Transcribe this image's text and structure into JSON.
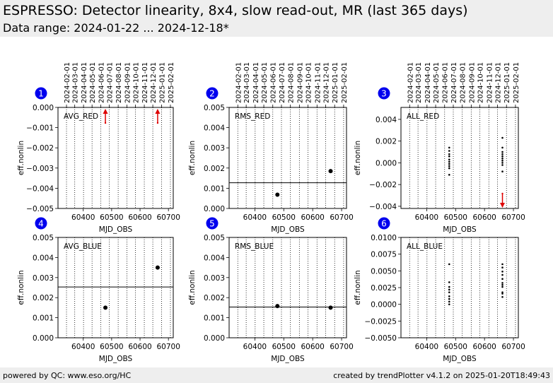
{
  "header": {
    "title": "ESPRESSO: Detector linearity, 8x4, slow read-out, MR (last 365 days)",
    "subtitle": "Data range: 2024-01-22 ... 2024-12-18*"
  },
  "footer": {
    "left": "powered by QC: www.eso.org/HC",
    "right": "created by trendPlotter v4.1.2 on 2025-01-20T18:49:43"
  },
  "colors": {
    "header_bg": "#eeeeee",
    "badge": "#0000ee",
    "marker": "#000000",
    "outlier": "#dd0000"
  },
  "top_date_ticks": [
    {
      "label": "2024-02-01",
      "mjd": 60341
    },
    {
      "label": "2024-03-01",
      "mjd": 60370
    },
    {
      "label": "2024-04-01",
      "mjd": 60401
    },
    {
      "label": "2024-05-01",
      "mjd": 60431
    },
    {
      "label": "2024-06-01",
      "mjd": 60462
    },
    {
      "label": "2024-07-01",
      "mjd": 60492
    },
    {
      "label": "2024-08-01",
      "mjd": 60523
    },
    {
      "label": "2024-09-01",
      "mjd": 60554
    },
    {
      "label": "2024-10-01",
      "mjd": 60584
    },
    {
      "label": "2024-11-01",
      "mjd": 60615
    },
    {
      "label": "2024-12-01",
      "mjd": 60645
    },
    {
      "label": "2025-01-01",
      "mjd": 60676
    },
    {
      "label": "2025-02-01",
      "mjd": 60707
    }
  ],
  "chart_data": [
    {
      "badge": "1",
      "type": "scatter",
      "label": "AVG_RED",
      "xlabel": "MJD_OBS",
      "ylabel": "eff.nonlin",
      "xlim": [
        60311,
        60717
      ],
      "ylim": [
        -0.005,
        0.0
      ],
      "xticks": [
        60400,
        60500,
        60600,
        60700
      ],
      "yticks": [
        -0.005,
        -0.004,
        -0.003,
        -0.002,
        -0.001,
        0.0
      ],
      "ytick_labels": [
        "−0.005",
        "−0.004",
        "−0.003",
        "−0.002",
        "−0.001",
        "0.000"
      ],
      "points": [],
      "outliers_up": [
        60478,
        60662
      ]
    },
    {
      "badge": "2",
      "type": "scatter",
      "label": "RMS_RED",
      "xlabel": "MJD_OBS",
      "ylabel": "eff.nonlin",
      "xlim": [
        60311,
        60717
      ],
      "ylim": [
        0.0,
        0.005
      ],
      "xticks": [
        60400,
        60500,
        60600,
        60700
      ],
      "yticks": [
        0.0,
        0.001,
        0.002,
        0.003,
        0.004,
        0.005
      ],
      "ytick_labels": [
        "0.000",
        "0.001",
        "0.002",
        "0.003",
        "0.004",
        "0.005"
      ],
      "points": [
        {
          "x": 60478,
          "y": 0.00068
        },
        {
          "x": 60662,
          "y": 0.00185
        }
      ],
      "hline": 0.00127
    },
    {
      "badge": "3",
      "type": "scatter",
      "label": "ALL_RED",
      "xlabel": "MJD_OBS",
      "ylabel": "eff.nonlin",
      "xlim": [
        60311,
        60717
      ],
      "ylim": [
        -0.0042,
        0.0051
      ],
      "xticks": [
        60400,
        60500,
        60600,
        60700
      ],
      "yticks": [
        -0.004,
        -0.002,
        0.0,
        0.002,
        0.004
      ],
      "ytick_labels": [
        "−0.004",
        "−0.002",
        "0.000",
        "0.002",
        "0.004"
      ],
      "small_points": [
        {
          "x": 60478,
          "y": 0.0014
        },
        {
          "x": 60478,
          "y": 0.0011
        },
        {
          "x": 60478,
          "y": 0.0008
        },
        {
          "x": 60478,
          "y": 0.0006
        },
        {
          "x": 60478,
          "y": 0.0003
        },
        {
          "x": 60478,
          "y": 0.0001
        },
        {
          "x": 60478,
          "y": -0.0001
        },
        {
          "x": 60478,
          "y": -0.0003
        },
        {
          "x": 60478,
          "y": -0.0005
        },
        {
          "x": 60478,
          "y": -0.0011
        },
        {
          "x": 60662,
          "y": 0.0023
        },
        {
          "x": 60662,
          "y": 0.0014
        },
        {
          "x": 60662,
          "y": 0.001
        },
        {
          "x": 60662,
          "y": 0.0008
        },
        {
          "x": 60662,
          "y": 0.0006
        },
        {
          "x": 60662,
          "y": 0.0004
        },
        {
          "x": 60662,
          "y": 0.0002
        },
        {
          "x": 60662,
          "y": 0.0
        },
        {
          "x": 60662,
          "y": -0.0002
        },
        {
          "x": 60662,
          "y": -0.0008
        }
      ],
      "outliers_down": [
        60662
      ]
    },
    {
      "badge": "4",
      "type": "scatter",
      "label": "AVG_BLUE",
      "xlabel": "MJD_OBS",
      "ylabel": "eff.nonlin",
      "xlim": [
        60311,
        60717
      ],
      "ylim": [
        0.0,
        0.005
      ],
      "xticks": [
        60400,
        60500,
        60600,
        60700
      ],
      "yticks": [
        0.0,
        0.001,
        0.002,
        0.003,
        0.004,
        0.005
      ],
      "ytick_labels": [
        "0.000",
        "0.001",
        "0.002",
        "0.003",
        "0.004",
        "0.005"
      ],
      "points": [
        {
          "x": 60478,
          "y": 0.0015
        },
        {
          "x": 60662,
          "y": 0.0035
        }
      ],
      "hline": 0.00253
    },
    {
      "badge": "5",
      "type": "scatter",
      "label": "RMS_BLUE",
      "xlabel": "MJD_OBS",
      "ylabel": "eff.nonlin",
      "xlim": [
        60311,
        60717
      ],
      "ylim": [
        0.0,
        0.005
      ],
      "xticks": [
        60400,
        60500,
        60600,
        60700
      ],
      "yticks": [
        0.0,
        0.001,
        0.002,
        0.003,
        0.004,
        0.005
      ],
      "ytick_labels": [
        "0.000",
        "0.001",
        "0.002",
        "0.003",
        "0.004",
        "0.005"
      ],
      "points": [
        {
          "x": 60478,
          "y": 0.00158
        },
        {
          "x": 60662,
          "y": 0.0015
        }
      ],
      "hline": 0.00153
    },
    {
      "badge": "6",
      "type": "scatter",
      "label": "ALL_BLUE",
      "xlabel": "MJD_OBS",
      "ylabel": "eff.nonlin",
      "xlim": [
        60311,
        60717
      ],
      "ylim": [
        -0.005,
        0.01
      ],
      "xticks": [
        60400,
        60500,
        60600,
        60700
      ],
      "yticks": [
        -0.005,
        -0.0025,
        0.0,
        0.0025,
        0.005,
        0.0075,
        0.01
      ],
      "ytick_labels": [
        "−0.0050",
        "−0.0025",
        "0.0000",
        "0.0025",
        "0.0050",
        "0.0075",
        "0.0100"
      ],
      "small_points": [
        {
          "x": 60478,
          "y": 0.006
        },
        {
          "x": 60478,
          "y": 0.0033
        },
        {
          "x": 60478,
          "y": 0.0026
        },
        {
          "x": 60478,
          "y": 0.0022
        },
        {
          "x": 60478,
          "y": 0.0018
        },
        {
          "x": 60478,
          "y": 0.0012
        },
        {
          "x": 60478,
          "y": 0.0008
        },
        {
          "x": 60478,
          "y": 0.0004
        },
        {
          "x": 60478,
          "y": 0.0
        },
        {
          "x": 60662,
          "y": 0.006
        },
        {
          "x": 60662,
          "y": 0.0055
        },
        {
          "x": 60662,
          "y": 0.0049
        },
        {
          "x": 60662,
          "y": 0.0044
        },
        {
          "x": 60662,
          "y": 0.0038
        },
        {
          "x": 60662,
          "y": 0.0032
        },
        {
          "x": 60662,
          "y": 0.0029
        },
        {
          "x": 60662,
          "y": 0.0026
        },
        {
          "x": 60662,
          "y": 0.0018
        },
        {
          "x": 60662,
          "y": 0.0016
        },
        {
          "x": 60662,
          "y": 0.0011
        }
      ]
    }
  ]
}
